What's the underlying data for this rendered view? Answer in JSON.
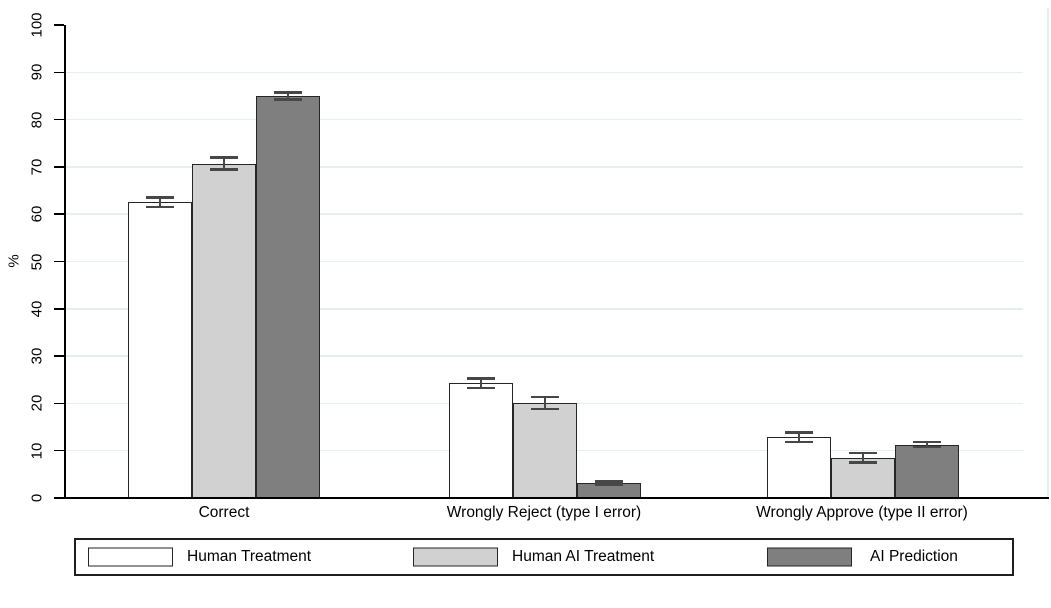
{
  "figure": {
    "background": "#ffffff"
  },
  "chart_data": {
    "type": "bar",
    "title": "",
    "xlabel": "",
    "ylabel": "%",
    "ylim": [
      0,
      100
    ],
    "yticks": [
      0,
      10,
      20,
      30,
      40,
      50,
      60,
      70,
      80,
      90,
      100
    ],
    "gridlines_at": [
      10,
      20,
      30,
      40,
      50,
      60,
      70,
      80,
      90
    ],
    "grid": "horizontal",
    "legend_position": "bottom",
    "error_bars": true,
    "categories": [
      "Correct",
      "Wrongly Reject (type I error)",
      "Wrongly Approve (type II error)"
    ],
    "series": [
      {
        "name": "Human Treatment",
        "color": "#ffffff",
        "values": [
          62.5,
          24.3,
          12.8
        ],
        "error_bars": [
          1.0,
          1.0,
          1.0
        ]
      },
      {
        "name": "Human AI Treatment",
        "color": "#d1d1d1",
        "values": [
          70.7,
          20.1,
          8.5
        ],
        "error_bars": [
          1.3,
          1.3,
          1.0
        ]
      },
      {
        "name": "AI Prediction",
        "color": "#7f7f7f",
        "values": [
          85.0,
          3.2,
          11.3
        ],
        "error_bars": [
          0.7,
          0.3,
          0.5
        ]
      }
    ],
    "colors": {
      "axis": "#000000",
      "grid": "#e6efee",
      "plot_right_border": "#e6efee",
      "bar_border": "#262626",
      "error_bar": "#474747",
      "text": "#000000",
      "legend_border": "#1f1f1f"
    }
  }
}
